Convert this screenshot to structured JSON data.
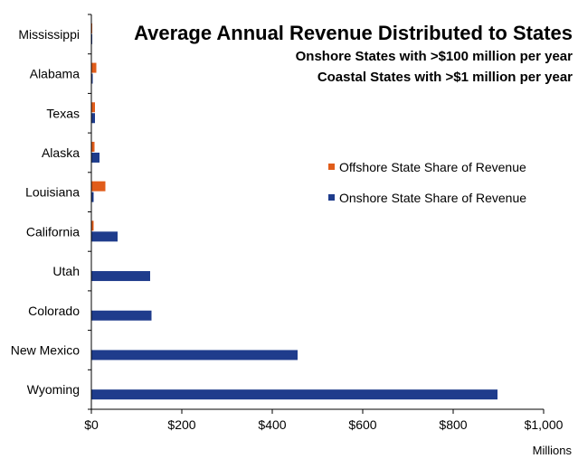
{
  "chart_data": {
    "type": "bar",
    "orientation": "horizontal",
    "title": "Average Annual Revenue Distributed to States",
    "subtitle_lines": [
      "Onshore States with >$100 million per year",
      "Coastal States with >$1 million per year"
    ],
    "categories": [
      "Mississippi",
      "Alabama",
      "Texas",
      "Alaska",
      "Louisiana",
      "California",
      "Utah",
      "Colorado",
      "New Mexico",
      "Wyoming"
    ],
    "series": [
      {
        "name": "Offshore State Share of Revenue",
        "color": "#e05c1a",
        "values": [
          2,
          11,
          8,
          7,
          31,
          5,
          0,
          0,
          0,
          0
        ]
      },
      {
        "name": "Onshore State Share of Revenue",
        "color": "#1f3c8c",
        "values": [
          2,
          3,
          8,
          18,
          5,
          58,
          130,
          133,
          456,
          898
        ]
      }
    ],
    "x_tick_labels": [
      "$0",
      "$200",
      "$400",
      "$600",
      "$800",
      "$1,000"
    ],
    "x_ticks": [
      0,
      200,
      400,
      600,
      800,
      1000
    ],
    "xlim": [
      0,
      1000
    ],
    "x_unit": "Millions",
    "legend_position": "right",
    "grid": false
  }
}
